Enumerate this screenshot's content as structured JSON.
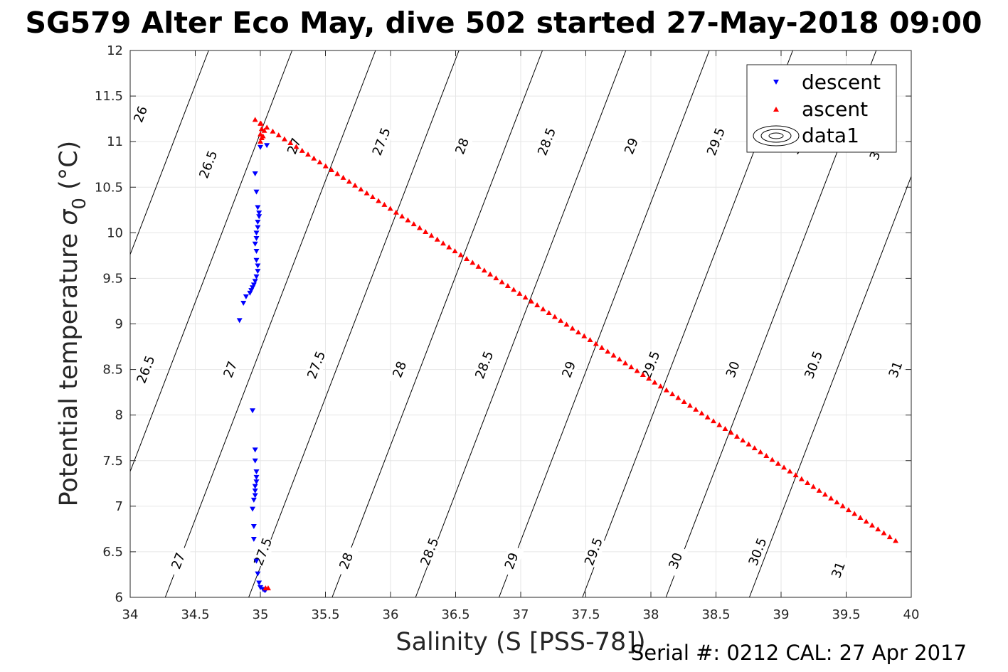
{
  "chart_data": {
    "type": "scatter",
    "title": "SG579 Alter Eco May, dive 502 started 27-May-2018 09:00",
    "xlabel": "Salinity (S [PSS-78])",
    "ylabel_main": "Potential temperature ",
    "ylabel_sym": "σ",
    "ylabel_sub": "0",
    "ylabel_unit": " (°C)",
    "xlim": [
      34,
      40
    ],
    "ylim": [
      6,
      12
    ],
    "xticks": [
      34,
      34.5,
      35,
      35.5,
      36,
      36.5,
      37,
      37.5,
      38,
      38.5,
      39,
      39.5,
      40
    ],
    "xtick_labels": [
      "34",
      "34.5",
      "35",
      "35.5",
      "36",
      "36.5",
      "37",
      "37.5",
      "38",
      "38.5",
      "39",
      "39.5",
      "40"
    ],
    "yticks": [
      6,
      6.5,
      7,
      7.5,
      8,
      8.5,
      9,
      9.5,
      10,
      10.5,
      11,
      11.5,
      12
    ],
    "ytick_labels": [
      "6",
      "6.5",
      "7",
      "7.5",
      "8",
      "8.5",
      "9",
      "9.5",
      "10",
      "10.5",
      "11",
      "11.5",
      "12"
    ],
    "grid": true,
    "legend_position": "top-right",
    "legend": [
      "descent",
      "ascent",
      "data1"
    ],
    "contours": {
      "levels": [
        26,
        26.5,
        27,
        27.5,
        28,
        28.5,
        29,
        29.5,
        30,
        30.5,
        31
      ],
      "level_labels": [
        "26",
        "26.5",
        "27",
        "27.5",
        "28",
        "28.5",
        "29",
        "29.5",
        "30",
        "30.5",
        "31"
      ],
      "label_positions": [
        {
          "level": 26,
          "x": 34.08,
          "y": 11.3
        },
        {
          "level": 26.5,
          "x": 34.6,
          "y": 10.75
        },
        {
          "level": 27,
          "x": 35.26,
          "y": 10.95
        },
        {
          "level": 27.5,
          "x": 35.93,
          "y": 11.0
        },
        {
          "level": 28,
          "x": 36.55,
          "y": 10.95
        },
        {
          "level": 28.5,
          "x": 37.2,
          "y": 11.0
        },
        {
          "level": 29,
          "x": 37.85,
          "y": 10.95
        },
        {
          "level": 29.5,
          "x": 38.5,
          "y": 11.0
        },
        {
          "level": 30,
          "x": 39.12,
          "y": 10.95
        },
        {
          "level": 30.5,
          "x": 39.75,
          "y": 10.95
        },
        {
          "level": 26.5,
          "x": 34.12,
          "y": 8.5
        },
        {
          "level": 27,
          "x": 34.77,
          "y": 8.5
        },
        {
          "level": 27.5,
          "x": 35.43,
          "y": 8.55
        },
        {
          "level": 28,
          "x": 36.07,
          "y": 8.5
        },
        {
          "level": 28.5,
          "x": 36.72,
          "y": 8.55
        },
        {
          "level": 29,
          "x": 37.37,
          "y": 8.5
        },
        {
          "level": 29.5,
          "x": 38.0,
          "y": 8.55
        },
        {
          "level": 30,
          "x": 38.63,
          "y": 8.5
        },
        {
          "level": 30.5,
          "x": 39.25,
          "y": 8.55
        },
        {
          "level": 31,
          "x": 39.88,
          "y": 8.5
        },
        {
          "level": 27,
          "x": 34.37,
          "y": 6.4
        },
        {
          "level": 27.5,
          "x": 35.02,
          "y": 6.5
        },
        {
          "level": 28,
          "x": 35.66,
          "y": 6.4
        },
        {
          "level": 28.5,
          "x": 36.3,
          "y": 6.5
        },
        {
          "level": 29,
          "x": 36.93,
          "y": 6.4
        },
        {
          "level": 29.5,
          "x": 37.56,
          "y": 6.5
        },
        {
          "level": 30,
          "x": 38.19,
          "y": 6.4
        },
        {
          "level": 30.5,
          "x": 38.82,
          "y": 6.5
        },
        {
          "level": 31,
          "x": 39.44,
          "y": 6.3
        }
      ]
    },
    "series": [
      {
        "name": "descent",
        "color": "#0000ff",
        "marker": "triangle-down",
        "points": [
          [
            35.05,
            10.96
          ],
          [
            35.0,
            10.94
          ],
          [
            34.96,
            10.65
          ],
          [
            34.97,
            10.45
          ],
          [
            34.98,
            10.28
          ],
          [
            34.99,
            10.22
          ],
          [
            34.99,
            10.18
          ],
          [
            34.98,
            10.12
          ],
          [
            34.98,
            10.06
          ],
          [
            34.97,
            10.0
          ],
          [
            34.97,
            9.94
          ],
          [
            34.96,
            9.88
          ],
          [
            34.97,
            9.8
          ],
          [
            34.97,
            9.7
          ],
          [
            34.98,
            9.64
          ],
          [
            34.98,
            9.58
          ],
          [
            34.97,
            9.52
          ],
          [
            34.96,
            9.47
          ],
          [
            34.95,
            9.43
          ],
          [
            34.94,
            9.4
          ],
          [
            34.93,
            9.37
          ],
          [
            34.92,
            9.34
          ],
          [
            34.89,
            9.3
          ],
          [
            34.87,
            9.23
          ],
          [
            34.84,
            9.04
          ],
          [
            34.94,
            8.05
          ],
          [
            34.96,
            7.62
          ],
          [
            34.96,
            7.5
          ],
          [
            34.97,
            7.38
          ],
          [
            34.97,
            7.32
          ],
          [
            34.97,
            7.27
          ],
          [
            34.96,
            7.22
          ],
          [
            34.96,
            7.17
          ],
          [
            34.96,
            7.12
          ],
          [
            34.95,
            7.07
          ],
          [
            34.94,
            6.97
          ],
          [
            34.95,
            6.78
          ],
          [
            34.95,
            6.64
          ],
          [
            34.97,
            6.4
          ],
          [
            34.98,
            6.26
          ],
          [
            34.99,
            6.16
          ],
          [
            35.0,
            6.11
          ],
          [
            35.02,
            6.09
          ],
          [
            35.03,
            6.08
          ],
          [
            35.04,
            6.08
          ]
        ]
      },
      {
        "name": "ascent",
        "color": "#ff0000",
        "marker": "triangle-up",
        "line_from": [
          34.96,
          11.24
        ],
        "line_to": [
          39.88,
          6.62
        ],
        "line_count": 110,
        "extra_points": [
          [
            35.0,
            11.2
          ],
          [
            35.01,
            11.14
          ],
          [
            35.0,
            11.08
          ],
          [
            35.01,
            11.04
          ],
          [
            35.0,
            11.0
          ],
          [
            35.02,
            11.06
          ],
          [
            35.03,
            11.12
          ],
          [
            35.04,
            6.1
          ],
          [
            35.06,
            6.1
          ]
        ]
      }
    ],
    "footer": "Serial #: 0212  CAL: 27 Apr 2017"
  }
}
